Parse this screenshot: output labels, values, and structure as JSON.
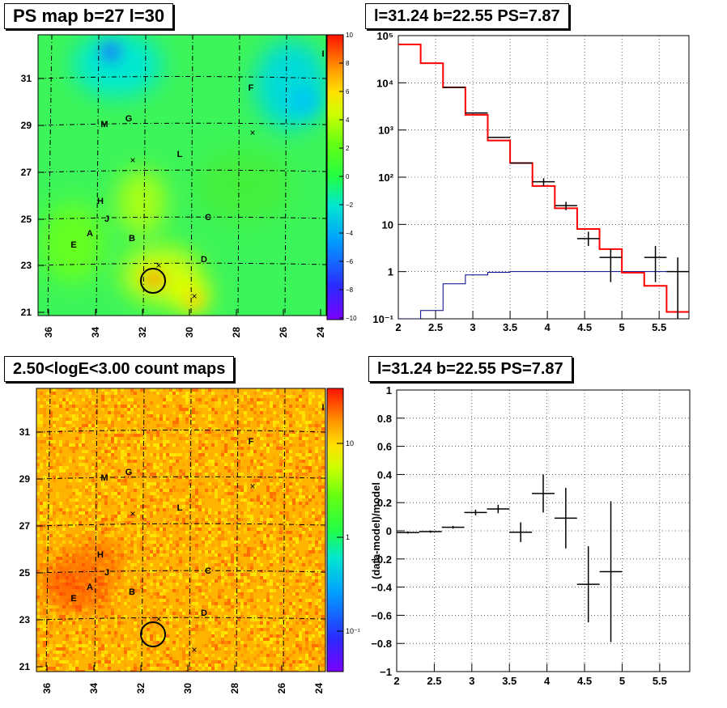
{
  "panels": {
    "tl_title": "PS map b=27 l=30",
    "tr_title": "l=31.24 b=22.55 PS=7.87",
    "bl_title": "2.50<logE<3.00 count maps",
    "br_title": "l=31.24 b=22.55 PS=7.87"
  },
  "colors": {
    "model": "#ff0000",
    "background_model": "#00008b",
    "data": "#000000"
  },
  "chart_data": [
    {
      "type": "heatmap",
      "title": "PS map b=27 l=30",
      "x_ticks": [
        "36",
        "34",
        "32",
        "30",
        "28",
        "26",
        "24"
      ],
      "y_ticks": [
        "31",
        "29",
        "27",
        "25",
        "23",
        "21"
      ],
      "colorbar_ticks": [
        "10",
        "8",
        "6",
        "4",
        "2",
        "0",
        "−2",
        "−4",
        "−6",
        "−8",
        "−10"
      ],
      "zlim": [
        -10,
        10
      ],
      "sources": [
        "M",
        "G",
        "F",
        "L",
        "H",
        "J",
        "C",
        "A",
        "B",
        "E",
        "D",
        "I"
      ],
      "marker": "circle at l=31.24 b=22.55"
    },
    {
      "type": "line",
      "title": "l=31.24 b=22.55 PS=7.87",
      "log_y": true,
      "xlim": [
        2,
        5.9
      ],
      "ylim": [
        0.1,
        100000
      ],
      "x_ticks": [
        "2",
        "2.5",
        "3",
        "3.5",
        "4",
        "4.5",
        "5",
        "5.5"
      ],
      "y_ticks": [
        "10⁻¹",
        "1",
        "10",
        "10²",
        "10³",
        "10⁴",
        "10⁵"
      ],
      "bin_edges": [
        2.0,
        2.3,
        2.6,
        2.9,
        3.2,
        3.5,
        3.8,
        4.1,
        4.4,
        4.7,
        5.0,
        5.3,
        5.6,
        5.9
      ],
      "series": [
        {
          "values": [
            65000,
            26000,
            8000,
            2100,
            600,
            200,
            65,
            22,
            8,
            3,
            0.95,
            0.5,
            0.14
          ]
        },
        {
          "values": [
            0.1,
            0.15,
            0.55,
            0.85,
            0.97,
            1.0,
            1.0,
            1.0,
            1.0,
            1.0,
            1.0,
            1.0,
            1.0
          ]
        },
        {
          "points": [
            {
              "x": 2.75,
              "y": 8000
            },
            {
              "x": 3.05,
              "y": 2300
            },
            {
              "x": 3.35,
              "y": 700
            },
            {
              "x": 3.65,
              "y": 200
            },
            {
              "x": 3.95,
              "y": 80,
              "err": [
                65,
                95
              ]
            },
            {
              "x": 4.25,
              "y": 25,
              "err": [
                20,
                30
              ]
            },
            {
              "x": 4.55,
              "y": 5,
              "err": [
                3.5,
                7
              ]
            },
            {
              "x": 4.85,
              "y": 2,
              "err": [
                0.6,
                3
              ]
            },
            {
              "x": 5.45,
              "y": 2,
              "err": [
                0.6,
                3.5
              ]
            },
            {
              "x": 5.75,
              "y": 1,
              "err": [
                0.1,
                2
              ]
            }
          ]
        }
      ]
    },
    {
      "type": "heatmap",
      "title": "2.50<logE<3.00 count maps",
      "x_ticks": [
        "36",
        "34",
        "32",
        "30",
        "28",
        "26",
        "24"
      ],
      "y_ticks": [
        "31",
        "29",
        "27",
        "25",
        "23",
        "21"
      ],
      "colorbar_ticks": [
        "10",
        "1",
        "10⁻¹"
      ],
      "log_z": true,
      "sources": [
        "M",
        "G",
        "F",
        "L",
        "H",
        "J",
        "C",
        "A",
        "B",
        "E",
        "D",
        "I"
      ]
    },
    {
      "type": "scatter",
      "title": "l=31.24 b=22.55 PS=7.87",
      "ylabel": "(data-model)/model",
      "xlim": [
        2,
        5.9
      ],
      "ylim": [
        -1,
        1
      ],
      "x_ticks": [
        "2",
        "2.5",
        "3",
        "3.5",
        "4",
        "4.5",
        "5",
        "5.5"
      ],
      "y_ticks": [
        "1",
        "0.8",
        "0.6",
        "0.4",
        "0.2",
        "0",
        "−0.2",
        "−0.4",
        "−0.6",
        "−0.8",
        "−1"
      ],
      "points": [
        {
          "x": 2.15,
          "y": -0.012,
          "xerr": 0.15,
          "yerr": 0.008
        },
        {
          "x": 2.45,
          "y": -0.006,
          "xerr": 0.15,
          "yerr": 0.008
        },
        {
          "x": 2.75,
          "y": 0.025,
          "xerr": 0.15,
          "yerr": 0.01
        },
        {
          "x": 3.05,
          "y": 0.13,
          "xerr": 0.15,
          "yerr": 0.02
        },
        {
          "x": 3.35,
          "y": 0.155,
          "xerr": 0.15,
          "yerr": 0.03
        },
        {
          "x": 3.65,
          "y": -0.01,
          "xerr": 0.15,
          "yerr": 0.07
        },
        {
          "x": 3.95,
          "y": 0.265,
          "xerr": 0.15,
          "yerr": 0.135
        },
        {
          "x": 4.25,
          "y": 0.09,
          "xerr": 0.15,
          "yerr": 0.215
        },
        {
          "x": 4.55,
          "y": -0.38,
          "xerr": 0.15,
          "yerr": 0.27
        },
        {
          "x": 4.85,
          "y": -0.29,
          "xerr": 0.15,
          "yerr": 0.5
        }
      ]
    }
  ]
}
